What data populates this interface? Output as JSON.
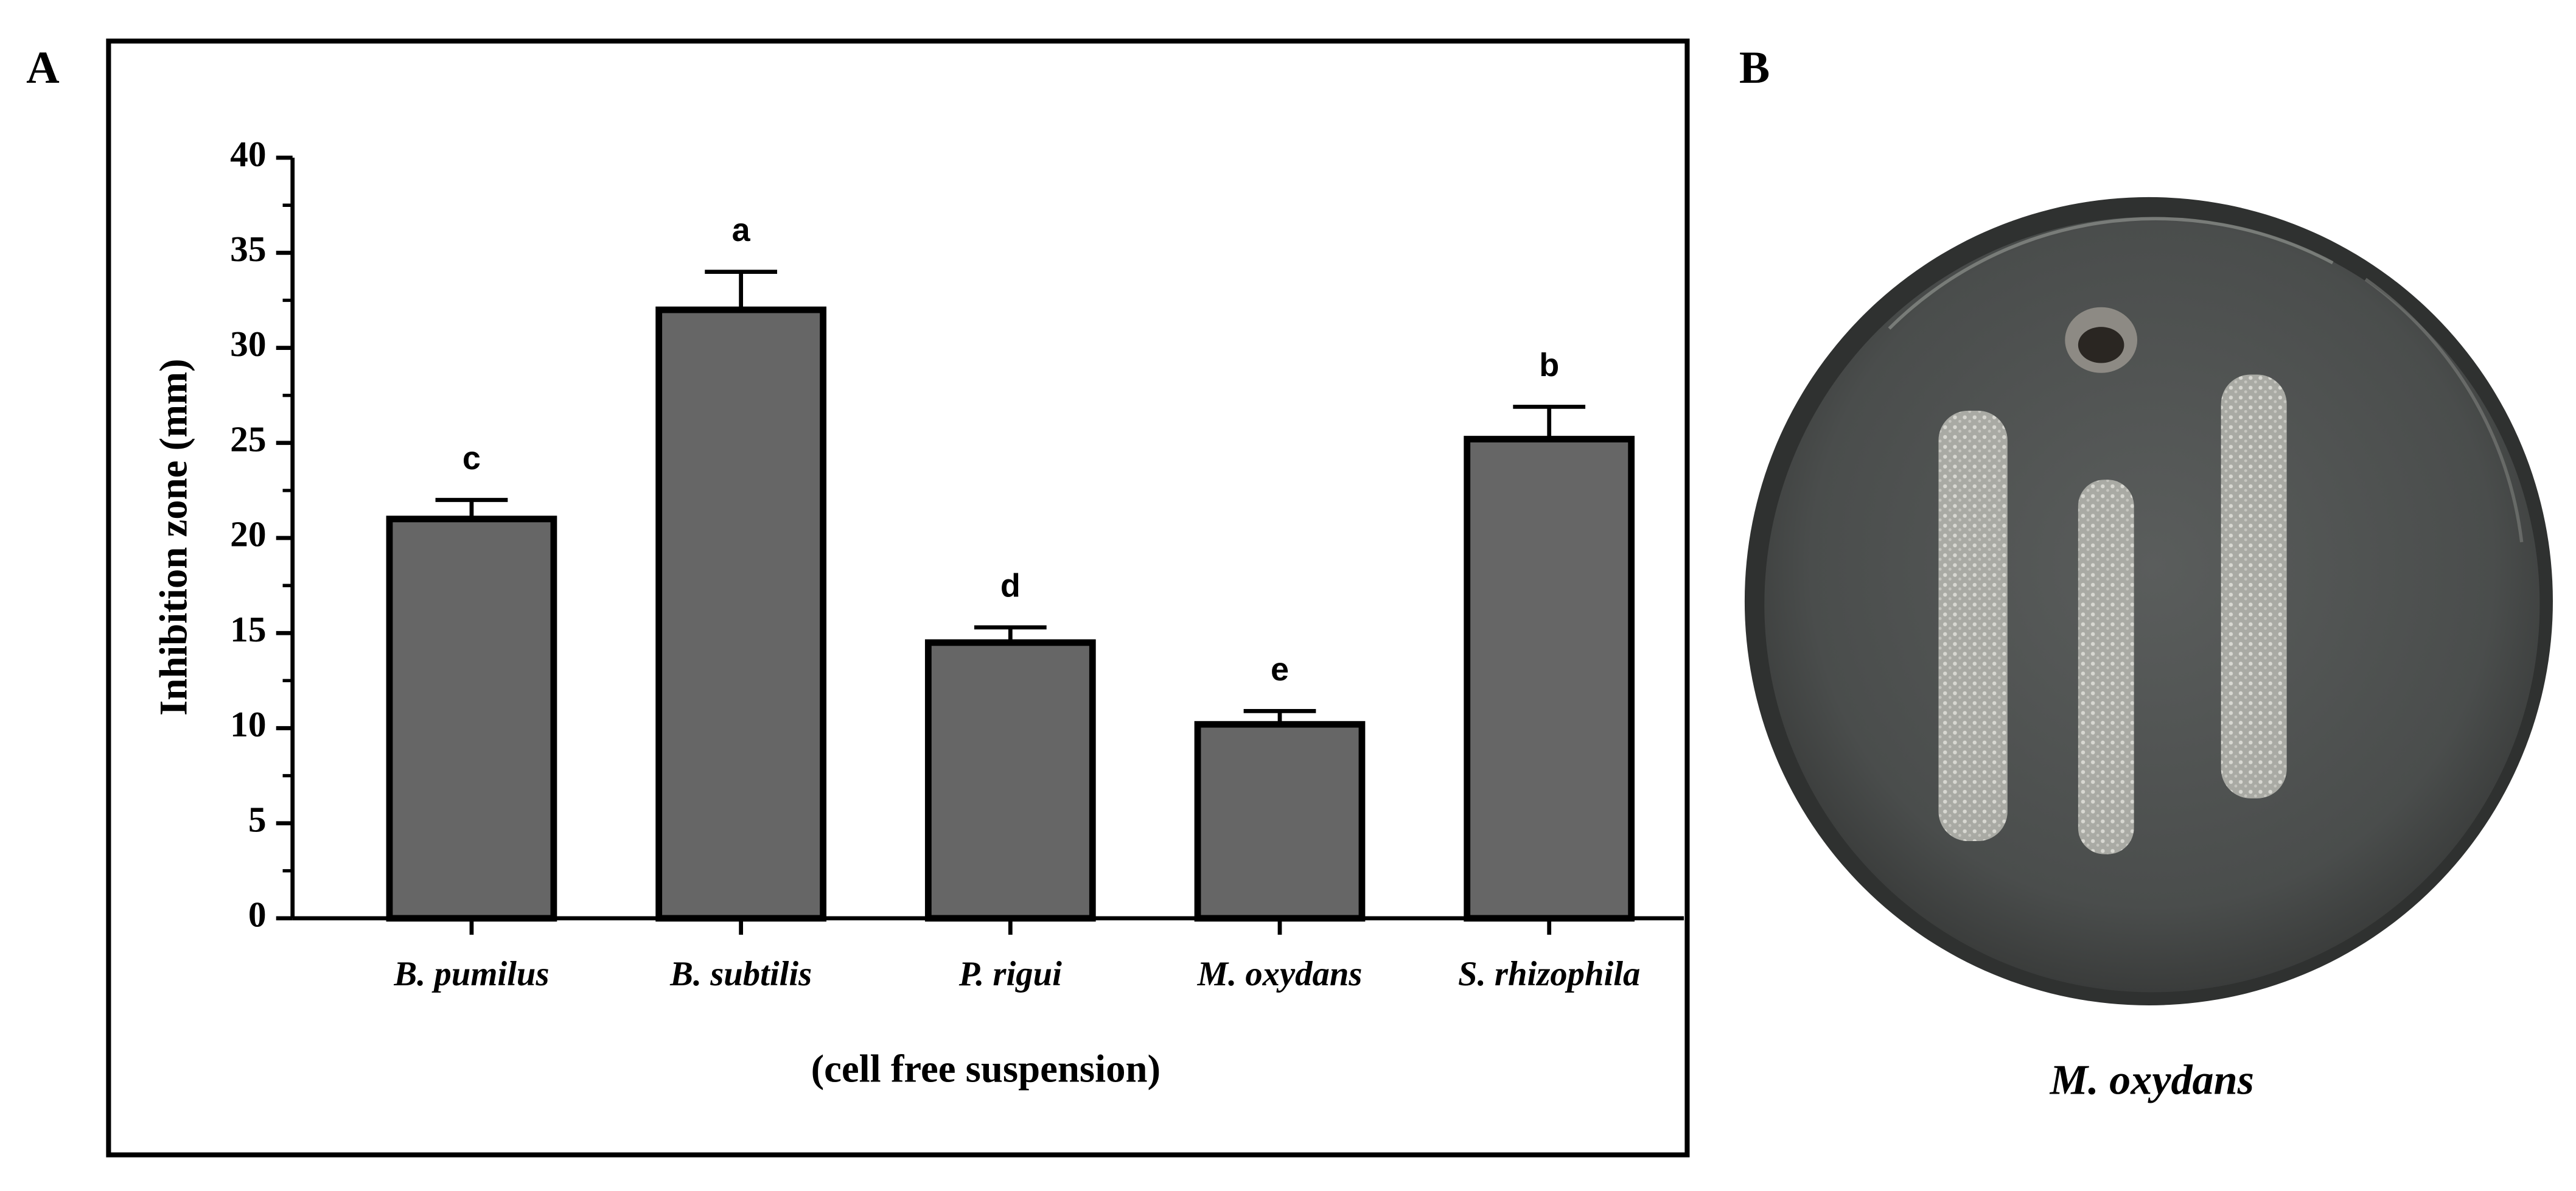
{
  "chart_data": {
    "type": "bar",
    "panel_label": "A",
    "y_label": "Inhibition zone (mm)",
    "x_label": "(cell free suspension)",
    "categories": [
      "B. pumilus",
      "B. subtilis",
      "P. rigui",
      "M. oxydans",
      "S. rhizophila"
    ],
    "values": [
      21,
      32,
      14.5,
      10.2,
      25.2
    ],
    "errors": [
      1.0,
      2.0,
      0.8,
      0.7,
      1.7
    ],
    "significance": [
      "c",
      "a",
      "d",
      "e",
      "b"
    ],
    "color": "#666666",
    "ylim": [
      0,
      40
    ],
    "yticks": [
      0,
      5,
      10,
      15,
      20,
      25,
      30,
      35,
      40
    ],
    "minor_yticks": [
      2.5,
      7.5,
      12.5,
      17.5,
      22.5,
      27.5,
      32.5,
      37.5
    ]
  },
  "panel_b": {
    "label": "B",
    "caption": "M. oxydans"
  }
}
